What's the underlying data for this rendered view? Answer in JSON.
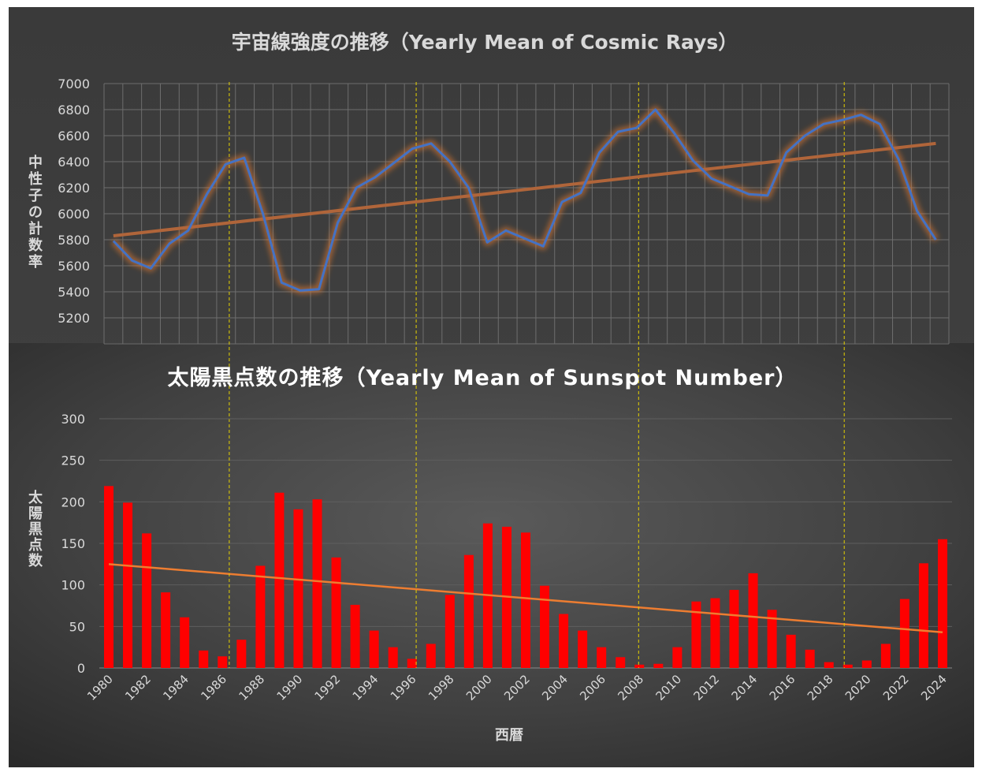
{
  "colors": {
    "cosmic_line": "#4472C4",
    "cosmic_glow": "#ED7D31",
    "cosmic_trend": "#B0653A",
    "sunspot_bar": "#FF0000",
    "sunspot_trend": "#ED7D31",
    "cycle_marker": "#E6D200",
    "gridline": "#6E6E6E",
    "text": "#D9D9D9"
  },
  "chart_data": [
    {
      "type": "line",
      "title": "宇宙線強度の推移（Yearly Mean of Cosmic Rays）",
      "xlabel": "",
      "ylabel": "中性子の計数率",
      "ylim": [
        5000,
        7000
      ],
      "yticks": [
        5200,
        5400,
        5600,
        5800,
        6000,
        6200,
        6400,
        6600,
        6800,
        7000
      ],
      "x": [
        1980,
        1981,
        1982,
        1983,
        1984,
        1985,
        1986,
        1987,
        1988,
        1989,
        1990,
        1991,
        1992,
        1993,
        1994,
        1995,
        1996,
        1997,
        1998,
        1999,
        2000,
        2001,
        2002,
        2003,
        2004,
        2005,
        2006,
        2007,
        2008,
        2009,
        2010,
        2011,
        2012,
        2013,
        2014,
        2015,
        2016,
        2017,
        2018,
        2019,
        2020,
        2021,
        2022,
        2023,
        2024
      ],
      "series": [
        {
          "values": [
            5790,
            5640,
            5580,
            5770,
            5870,
            6150,
            6380,
            6430,
            6000,
            5470,
            5410,
            5420,
            5930,
            6200,
            6280,
            6390,
            6500,
            6540,
            6400,
            6200,
            5780,
            5870,
            5810,
            5750,
            6090,
            6160,
            6470,
            6630,
            6660,
            6800,
            6620,
            6410,
            6270,
            6210,
            6150,
            6140,
            6470,
            6600,
            6690,
            6720,
            6760,
            6690,
            6420,
            6020,
            5800
          ]
        }
      ],
      "trend": [
        5830,
        6540
      ],
      "cycle_markers": [
        1986.2,
        1996.2,
        2008.1,
        2019.1
      ],
      "grid": true
    },
    {
      "type": "bar",
      "title": "太陽黒点数の推移（Yearly Mean of Sunspot Number）",
      "xlabel": "西暦",
      "ylabel": "太陽黒点数",
      "ylim": [
        0,
        300
      ],
      "yticks": [
        0,
        50,
        100,
        150,
        200,
        250,
        300
      ],
      "xtick_labels": [
        "1980",
        "1982",
        "1984",
        "1986",
        "1988",
        "1990",
        "1992",
        "1994",
        "1996",
        "1998",
        "2000",
        "2002",
        "2004",
        "2006",
        "2008",
        "2010",
        "2012",
        "2014",
        "2016",
        "2018",
        "2020",
        "2022",
        "2024"
      ],
      "x": [
        1980,
        1981,
        1982,
        1983,
        1984,
        1985,
        1986,
        1987,
        1988,
        1989,
        1990,
        1991,
        1992,
        1993,
        1994,
        1995,
        1996,
        1997,
        1998,
        1999,
        2000,
        2001,
        2002,
        2003,
        2004,
        2005,
        2006,
        2007,
        2008,
        2009,
        2010,
        2011,
        2012,
        2013,
        2014,
        2015,
        2016,
        2017,
        2018,
        2019,
        2020,
        2021,
        2022,
        2023,
        2024
      ],
      "series": [
        {
          "values": [
            219,
            199,
            162,
            91,
            61,
            21,
            14,
            34,
            123,
            211,
            191,
            203,
            133,
            76,
            45,
            25,
            11,
            29,
            88,
            136,
            174,
            170,
            163,
            99,
            65,
            45,
            25,
            13,
            4,
            5,
            25,
            80,
            84,
            94,
            114,
            70,
            40,
            22,
            7,
            4,
            9,
            29,
            83,
            126,
            155
          ]
        }
      ],
      "trend": [
        125,
        43
      ],
      "cycle_markers": [
        1986.2,
        1996.2,
        2008.1,
        2019.1
      ],
      "grid": true
    }
  ]
}
